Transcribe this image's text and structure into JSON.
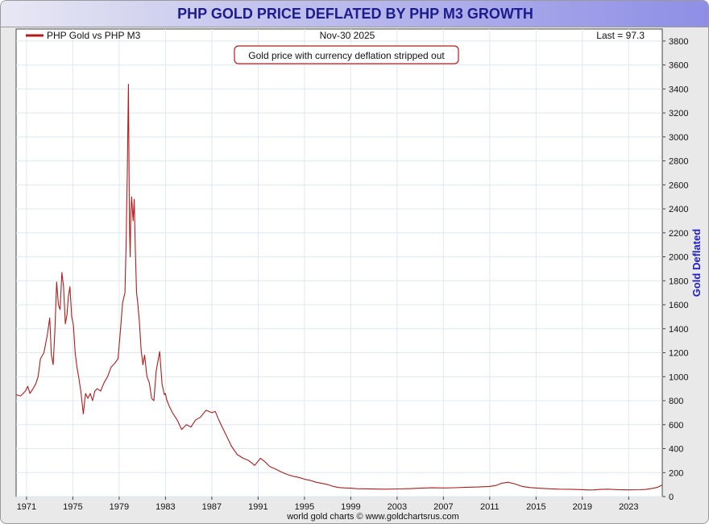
{
  "window": {
    "title": "PHP GOLD PRICE DEFLATED BY PHP M3 GROWTH"
  },
  "chart_data": {
    "type": "line",
    "title": "PHP GOLD PRICE DEFLATED BY PHP M3 GROWTH",
    "legend": "PHP Gold vs PHP M3",
    "date_label": "Nov-30  2025",
    "last_label": "Last = 97.3",
    "annotation": "Gold price with currency deflation stripped out",
    "ylabel": "Gold Deflated",
    "footer": "world gold charts © www.goldchartsrus.com",
    "xlim": [
      1970.1,
      2025.9
    ],
    "ylim": [
      0,
      3900
    ],
    "xticks": [
      1971,
      1975,
      1979,
      1983,
      1987,
      1991,
      1995,
      1999,
      2003,
      2007,
      2011,
      2015,
      2019,
      2023
    ],
    "yticks": [
      0,
      200,
      400,
      600,
      800,
      1000,
      1200,
      1400,
      1600,
      1800,
      2000,
      2200,
      2400,
      2600,
      2800,
      3000,
      3200,
      3400,
      3600,
      3800
    ],
    "series": [
      {
        "name": "PHP Gold vs PHP M3",
        "color": "#b01c1c",
        "x": [
          1970.1,
          1970.5,
          1970.9,
          1971.1,
          1971.3,
          1971.5,
          1971.8,
          1972.0,
          1972.2,
          1972.5,
          1972.8,
          1973.0,
          1973.15,
          1973.3,
          1973.45,
          1973.6,
          1973.75,
          1973.9,
          1974.05,
          1974.2,
          1974.35,
          1974.5,
          1974.6,
          1974.75,
          1974.9,
          1975.05,
          1975.2,
          1975.35,
          1975.5,
          1975.7,
          1975.9,
          1976.1,
          1976.3,
          1976.5,
          1976.7,
          1976.9,
          1977.1,
          1977.4,
          1977.7,
          1978.0,
          1978.3,
          1978.6,
          1978.9,
          1979.1,
          1979.3,
          1979.5,
          1979.6,
          1979.7,
          1979.8,
          1979.88,
          1979.95,
          1980.0,
          1980.08,
          1980.2,
          1980.3,
          1980.4,
          1980.5,
          1980.6,
          1980.75,
          1980.9,
          1981.05,
          1981.2,
          1981.4,
          1981.6,
          1981.8,
          1982.0,
          1982.2,
          1982.5,
          1982.7,
          1982.9,
          1983.0,
          1983.1,
          1983.3,
          1983.6,
          1984.0,
          1984.4,
          1984.8,
          1985.2,
          1985.6,
          1986.0,
          1986.5,
          1987.0,
          1987.3,
          1987.6,
          1987.9,
          1988.3,
          1988.7,
          1989.2,
          1989.7,
          1990.2,
          1990.7,
          1991.2,
          1991.6,
          1992.0,
          1992.5,
          1993.0,
          1993.5,
          1994.0,
          1994.5,
          1995.0,
          1995.5,
          1996.0,
          1996.5,
          1997.0,
          1997.5,
          1998.0,
          1998.5,
          1999.0,
          1999.5,
          2000.0,
          2001.0,
          2002.0,
          2003.0,
          2004.0,
          2005.0,
          2006.0,
          2007.0,
          2008.0,
          2009.0,
          2010.0,
          2011.0,
          2011.6,
          2012.0,
          2012.6,
          2013.2,
          2013.8,
          2014.5,
          2015.2,
          2016.0,
          2017.0,
          2018.0,
          2019.0,
          2019.6,
          2020.0,
          2020.6,
          2021.2,
          2022.0,
          2023.0,
          2024.0,
          2024.5,
          2025.0,
          2025.5,
          2025.9
        ],
        "values": [
          850,
          840,
          880,
          920,
          860,
          890,
          940,
          1000,
          1150,
          1200,
          1350,
          1490,
          1180,
          1100,
          1380,
          1790,
          1600,
          1560,
          1870,
          1750,
          1440,
          1520,
          1660,
          1750,
          1500,
          1430,
          1200,
          1080,
          1000,
          870,
          690,
          860,
          820,
          860,
          800,
          880,
          900,
          880,
          950,
          1000,
          1080,
          1110,
          1150,
          1380,
          1620,
          1700,
          2100,
          2700,
          3440,
          2300,
          2000,
          2350,
          2500,
          2300,
          2480,
          2050,
          1700,
          1620,
          1450,
          1220,
          1100,
          1180,
          1000,
          950,
          820,
          800,
          1050,
          1210,
          940,
          850,
          860,
          810,
          760,
          700,
          640,
          560,
          600,
          580,
          640,
          660,
          720,
          700,
          710,
          640,
          580,
          500,
          420,
          350,
          320,
          300,
          260,
          320,
          290,
          250,
          230,
          205,
          185,
          170,
          160,
          145,
          135,
          120,
          110,
          100,
          85,
          75,
          72,
          70,
          66,
          65,
          63,
          62,
          64,
          66,
          70,
          73,
          72,
          74,
          78,
          80,
          85,
          95,
          110,
          120,
          105,
          85,
          75,
          70,
          66,
          62,
          61,
          58,
          55,
          56,
          60,
          62,
          58,
          56,
          57,
          60,
          68,
          78,
          97
        ]
      }
    ]
  }
}
